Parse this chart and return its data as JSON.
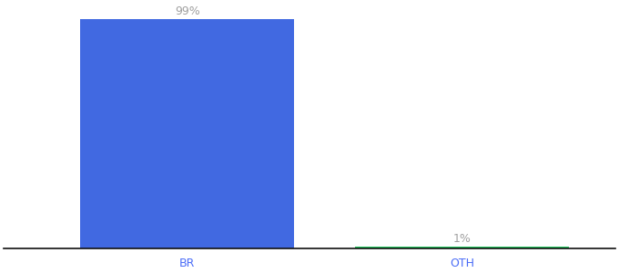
{
  "categories": [
    "BR",
    "OTH"
  ],
  "values": [
    99,
    1
  ],
  "bar_colors": [
    "#4169e1",
    "#22c55e"
  ],
  "label_texts": [
    "99%",
    "1%"
  ],
  "label_color": "#a0a0a0",
  "background_color": "#ffffff",
  "ylim": [
    0,
    105
  ],
  "bar_width": 0.35,
  "xlabel_fontsize": 9,
  "label_fontsize": 9,
  "axis_line_color": "#111111",
  "x_positions": [
    0.3,
    0.75
  ],
  "xlim": [
    0.0,
    1.0
  ],
  "tick_color": "#4a6cf7"
}
